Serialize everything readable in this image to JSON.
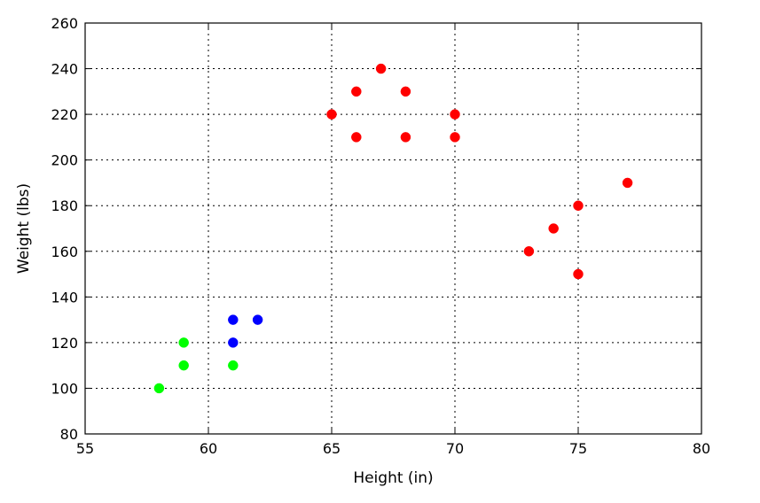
{
  "chart_data": {
    "type": "scatter",
    "title": "",
    "xlabel": "Height (in)",
    "ylabel": "Weight (lbs)",
    "xlim": [
      55,
      80
    ],
    "ylim": [
      80,
      260
    ],
    "xticks": [
      55,
      60,
      65,
      70,
      75,
      80
    ],
    "yticks": [
      80,
      100,
      120,
      140,
      160,
      180,
      200,
      220,
      240,
      260
    ],
    "grid": true,
    "series": [
      {
        "color": "#00ff00",
        "points": [
          [
            58,
            100
          ],
          [
            59,
            110
          ],
          [
            59,
            120
          ],
          [
            61,
            110
          ]
        ]
      },
      {
        "color": "#0000ff",
        "points": [
          [
            61,
            120
          ],
          [
            61,
            130
          ],
          [
            62,
            130
          ]
        ]
      },
      {
        "color": "#ff0000",
        "points": [
          [
            65,
            220
          ],
          [
            66,
            210
          ],
          [
            66,
            230
          ],
          [
            67,
            240
          ],
          [
            68,
            210
          ],
          [
            68,
            230
          ],
          [
            70,
            210
          ],
          [
            70,
            220
          ],
          [
            73,
            160
          ],
          [
            74,
            170
          ],
          [
            75,
            150
          ],
          [
            75,
            180
          ],
          [
            77,
            190
          ]
        ]
      }
    ]
  }
}
